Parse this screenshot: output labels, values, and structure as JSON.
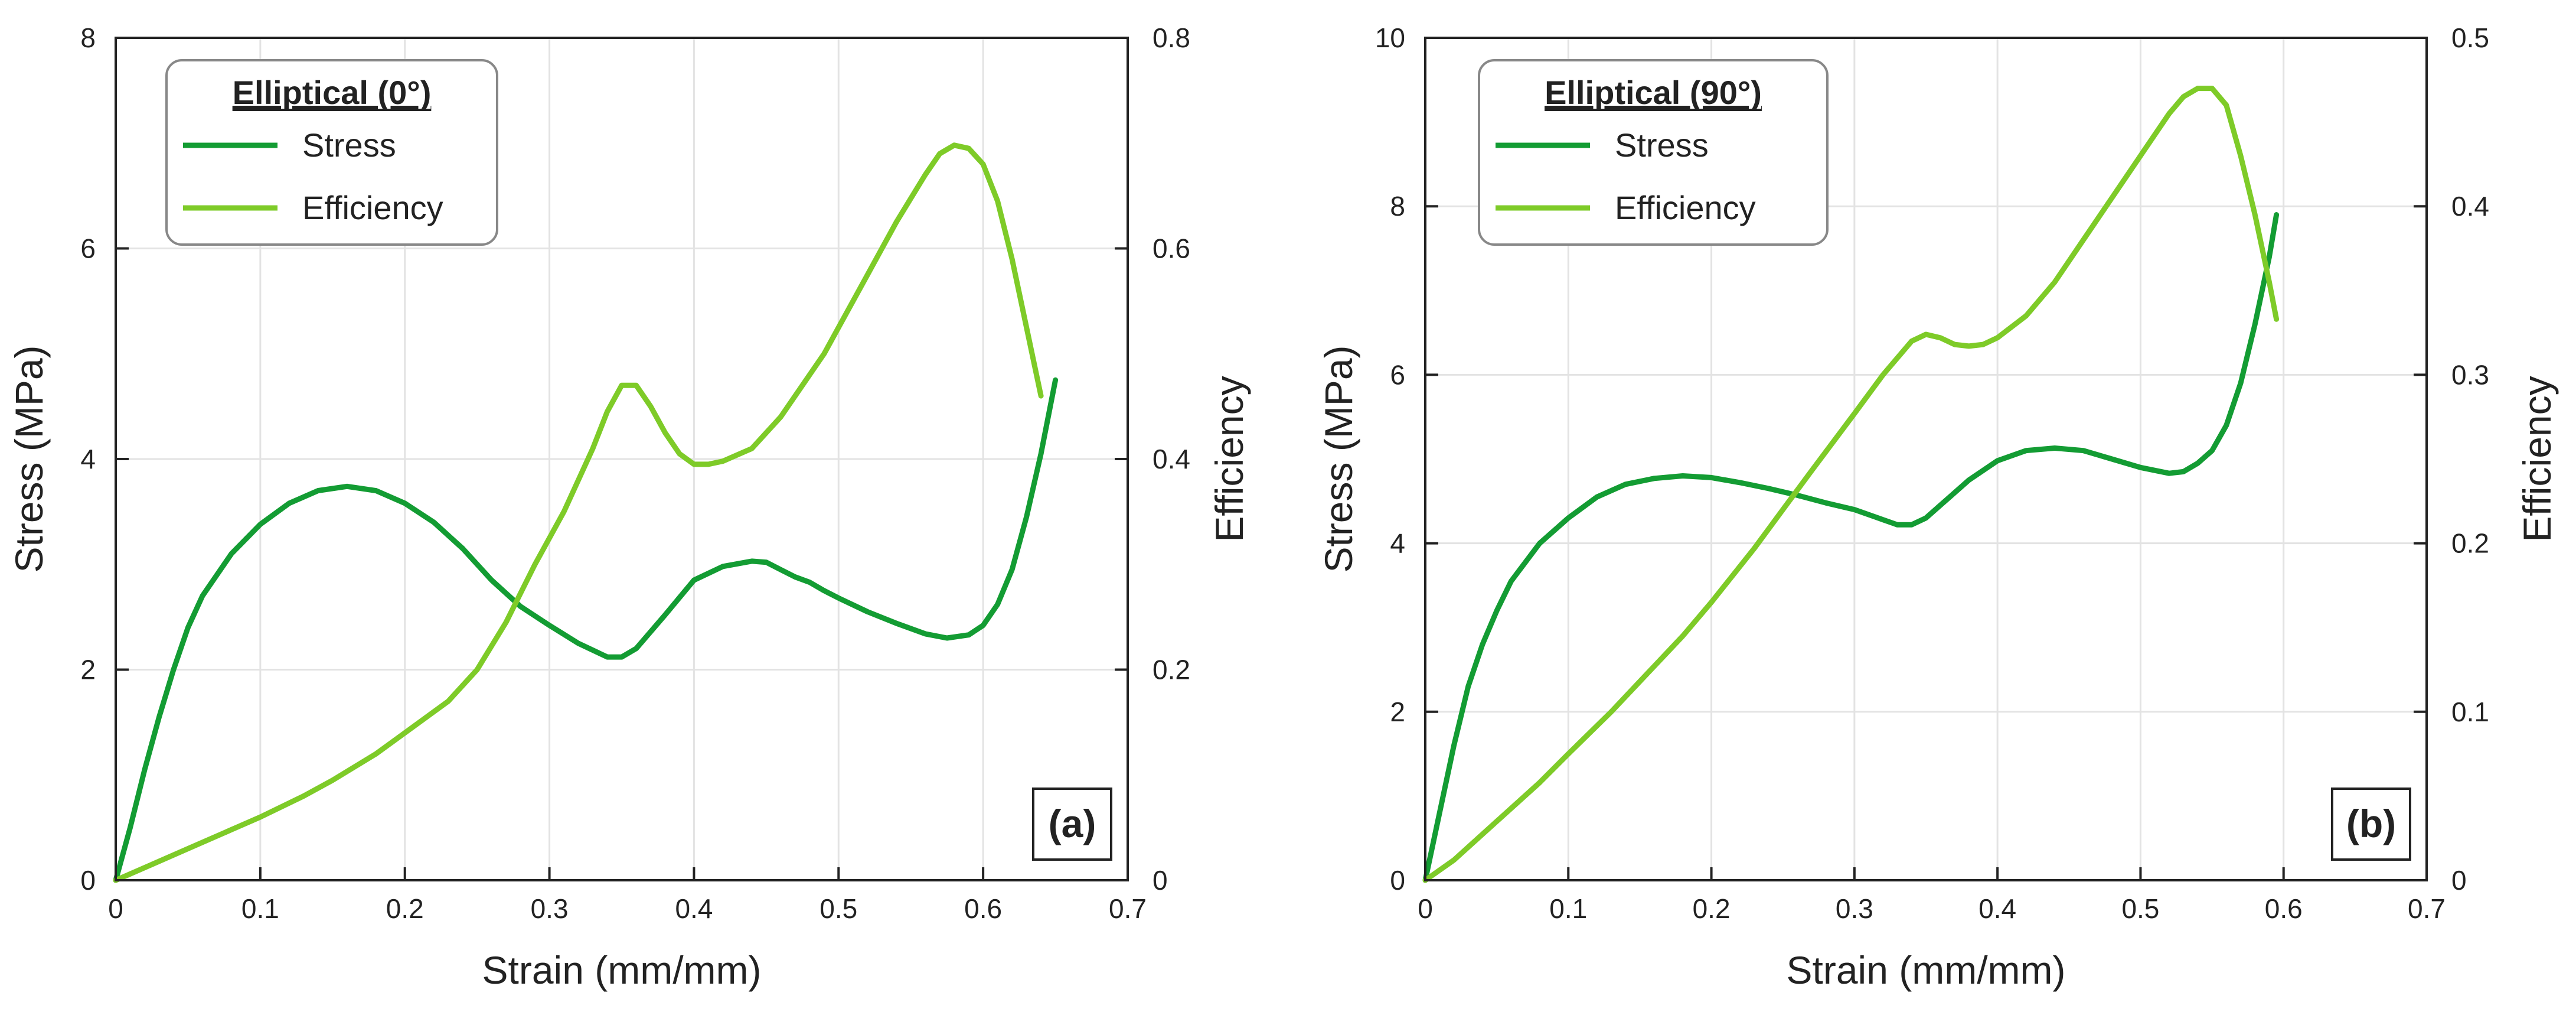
{
  "chart_data": [
    {
      "type": "line",
      "panel_label": "(a)",
      "legend_title": "Elliptical (0°)",
      "legend_position": "top-left",
      "xlabel": "Strain (mm/mm)",
      "ylabel": "Stress (MPa)",
      "y2label": "Efficiency",
      "xlim": [
        0,
        0.7
      ],
      "ylim": [
        0,
        8
      ],
      "y2lim": [
        0,
        0.8
      ],
      "x_ticks": [
        0,
        0.1,
        0.2,
        0.3,
        0.4,
        0.5,
        0.6,
        0.7
      ],
      "y_ticks": [
        0,
        2,
        4,
        6,
        8
      ],
      "y2_ticks": [
        0,
        0.2,
        0.4,
        0.6,
        0.8
      ],
      "x_tick_labels": [
        "0",
        "0.1",
        "0.2",
        "0.3",
        "0.4",
        "0.5",
        "0.6",
        "0.7"
      ],
      "y_tick_labels": [
        "0",
        "2",
        "4",
        "6",
        "8"
      ],
      "y2_tick_labels": [
        "0",
        "0.2",
        "0.4",
        "0.6",
        "0.8"
      ],
      "grid": true,
      "series": [
        {
          "name": "Stress",
          "axis": "left",
          "color": "#139c33",
          "x": [
            0,
            0.01,
            0.02,
            0.03,
            0.04,
            0.05,
            0.06,
            0.08,
            0.1,
            0.12,
            0.14,
            0.16,
            0.18,
            0.2,
            0.22,
            0.24,
            0.26,
            0.28,
            0.3,
            0.32,
            0.34,
            0.35,
            0.36,
            0.38,
            0.4,
            0.42,
            0.44,
            0.45,
            0.46,
            0.47,
            0.48,
            0.49,
            0.5,
            0.52,
            0.54,
            0.56,
            0.575,
            0.59,
            0.6,
            0.61,
            0.62,
            0.63,
            0.64,
            0.65
          ],
          "y": [
            0,
            0.5,
            1.05,
            1.55,
            2.0,
            2.4,
            2.7,
            3.1,
            3.38,
            3.58,
            3.7,
            3.74,
            3.7,
            3.58,
            3.4,
            3.15,
            2.85,
            2.6,
            2.42,
            2.25,
            2.12,
            2.12,
            2.2,
            2.52,
            2.85,
            2.98,
            3.03,
            3.02,
            2.95,
            2.88,
            2.83,
            2.75,
            2.68,
            2.55,
            2.44,
            2.34,
            2.3,
            2.33,
            2.42,
            2.62,
            2.95,
            3.45,
            4.05,
            4.75
          ]
        },
        {
          "name": "Efficiency",
          "axis": "right",
          "color": "#7ecb28",
          "x": [
            0,
            0.02,
            0.05,
            0.08,
            0.1,
            0.13,
            0.15,
            0.18,
            0.2,
            0.23,
            0.25,
            0.27,
            0.29,
            0.31,
            0.33,
            0.34,
            0.35,
            0.36,
            0.37,
            0.38,
            0.39,
            0.4,
            0.41,
            0.42,
            0.44,
            0.46,
            0.48,
            0.49,
            0.5,
            0.52,
            0.54,
            0.56,
            0.57,
            0.58,
            0.59,
            0.6,
            0.61,
            0.62,
            0.63,
            0.64
          ],
          "y": [
            0,
            0.012,
            0.03,
            0.048,
            0.06,
            0.08,
            0.095,
            0.12,
            0.14,
            0.17,
            0.2,
            0.245,
            0.3,
            0.35,
            0.41,
            0.445,
            0.47,
            0.47,
            0.45,
            0.425,
            0.405,
            0.395,
            0.395,
            0.398,
            0.41,
            0.44,
            0.48,
            0.5,
            0.525,
            0.575,
            0.625,
            0.67,
            0.69,
            0.698,
            0.695,
            0.68,
            0.645,
            0.59,
            0.525,
            0.46
          ]
        }
      ]
    },
    {
      "type": "line",
      "panel_label": "(b)",
      "legend_title": "Elliptical (90°)",
      "legend_position": "top-left",
      "xlabel": "Strain (mm/mm)",
      "ylabel": "Stress (MPa)",
      "y2label": "Efficiency",
      "xlim": [
        0,
        0.7
      ],
      "ylim": [
        0,
        10
      ],
      "y2lim": [
        0,
        0.5
      ],
      "x_ticks": [
        0,
        0.1,
        0.2,
        0.3,
        0.4,
        0.5,
        0.6,
        0.7
      ],
      "y_ticks": [
        0,
        2,
        4,
        6,
        8,
        10
      ],
      "y2_ticks": [
        0,
        0.1,
        0.2,
        0.3,
        0.4,
        0.5
      ],
      "x_tick_labels": [
        "0",
        "0.1",
        "0.2",
        "0.3",
        "0.4",
        "0.5",
        "0.6",
        "0.7"
      ],
      "y_tick_labels": [
        "0",
        "2",
        "4",
        "6",
        "8",
        "10"
      ],
      "y2_tick_labels": [
        "0",
        "0.1",
        "0.2",
        "0.3",
        "0.4",
        "0.5"
      ],
      "grid": true,
      "series": [
        {
          "name": "Stress",
          "axis": "left",
          "color": "#139c33",
          "x": [
            0,
            0.01,
            0.02,
            0.03,
            0.04,
            0.05,
            0.06,
            0.08,
            0.1,
            0.12,
            0.14,
            0.16,
            0.18,
            0.2,
            0.22,
            0.24,
            0.26,
            0.28,
            0.3,
            0.32,
            0.33,
            0.34,
            0.35,
            0.36,
            0.38,
            0.4,
            0.42,
            0.44,
            0.46,
            0.48,
            0.5,
            0.52,
            0.53,
            0.54,
            0.55,
            0.56,
            0.57,
            0.58,
            0.59,
            0.595
          ],
          "y": [
            0,
            0.8,
            1.6,
            2.3,
            2.8,
            3.2,
            3.55,
            4.0,
            4.3,
            4.55,
            4.7,
            4.77,
            4.8,
            4.78,
            4.72,
            4.65,
            4.57,
            4.48,
            4.4,
            4.28,
            4.22,
            4.22,
            4.3,
            4.45,
            4.75,
            4.98,
            5.1,
            5.13,
            5.1,
            5.0,
            4.9,
            4.83,
            4.85,
            4.95,
            5.1,
            5.4,
            5.9,
            6.6,
            7.4,
            7.9
          ]
        },
        {
          "name": "Efficiency",
          "axis": "right",
          "color": "#7ecb28",
          "x": [
            0,
            0.02,
            0.05,
            0.08,
            0.1,
            0.13,
            0.15,
            0.18,
            0.2,
            0.23,
            0.25,
            0.27,
            0.3,
            0.32,
            0.34,
            0.35,
            0.36,
            0.37,
            0.38,
            0.39,
            0.4,
            0.42,
            0.44,
            0.46,
            0.48,
            0.5,
            0.52,
            0.53,
            0.54,
            0.55,
            0.56,
            0.57,
            0.58,
            0.59,
            0.595
          ],
          "y": [
            0,
            0.012,
            0.035,
            0.058,
            0.075,
            0.1,
            0.118,
            0.145,
            0.165,
            0.197,
            0.22,
            0.243,
            0.277,
            0.3,
            0.32,
            0.324,
            0.322,
            0.318,
            0.317,
            0.318,
            0.322,
            0.335,
            0.355,
            0.38,
            0.405,
            0.43,
            0.455,
            0.465,
            0.47,
            0.47,
            0.46,
            0.43,
            0.395,
            0.355,
            0.333
          ]
        }
      ]
    }
  ]
}
